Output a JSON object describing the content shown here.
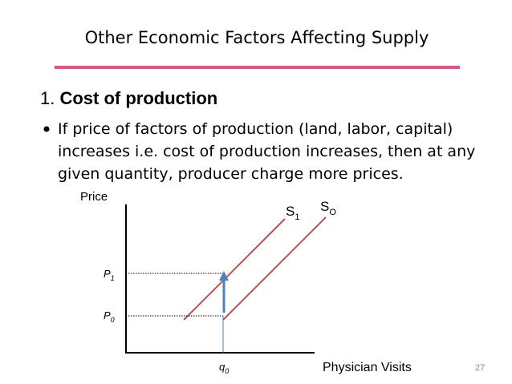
{
  "header": {
    "title": "Other Economic Factors Affecting Supply"
  },
  "section": {
    "number": "1.",
    "heading": "Cost of production"
  },
  "bullet": {
    "lines": [
      "If price of factors of production (land, labor, capital)",
      "increases i.e. cost of production increases, then at any",
      "given quantity, producer charge more prices."
    ]
  },
  "diagram": {
    "y_axis_label": "Price",
    "x_axis_label": "Physician Visits",
    "s1": {
      "base": "S",
      "sub": "1"
    },
    "s0": {
      "base": "S",
      "sub": "O"
    },
    "p1": {
      "base": "P",
      "sub": "1"
    },
    "p0": {
      "base": "P",
      "sub": "0"
    },
    "q0": {
      "base": "q",
      "sub": "0"
    }
  },
  "footer": {
    "page_number": "27"
  }
}
